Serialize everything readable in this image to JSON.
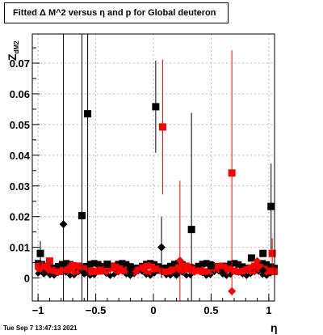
{
  "title": "Fitted Δ M^2 versus η and p for Global deuteron",
  "timestamp": "Tue Sep  7 13:47:13 2021",
  "chart_data": {
    "type": "scatter",
    "title": "Fitted Δ M^2 versus η and p for Global deuteron",
    "xlabel": "η",
    "ylabel": "Z_dM2",
    "xlim": [
      -1.05,
      1.05
    ],
    "ylim": [
      -0.0075,
      0.0795
    ],
    "xticks": [
      -1,
      -0.5,
      0,
      0.5,
      1
    ],
    "xtick_labels": [
      "−1",
      "−0.5",
      "0",
      "0.5",
      "1"
    ],
    "yticks": [
      0,
      0.01,
      0.02,
      0.03,
      0.04,
      0.05,
      0.06,
      0.07
    ],
    "ytick_labels": [
      "0",
      "0.01",
      "0.02",
      "0.03",
      "0.04",
      "0.05",
      "0.06",
      "0.07"
    ],
    "grid": true,
    "series": [
      {
        "marker": "square",
        "color": "#000000",
        "points": [
          {
            "x": -0.98,
            "y": 0.008,
            "err": 0.004
          },
          {
            "x": -0.62,
            "y": 0.0203,
            "err": 0.08
          },
          {
            "x": -0.57,
            "y": 0.0535,
            "err": 0.08
          },
          {
            "x": -0.4,
            "y": 0.0045,
            "err": 0.0
          },
          {
            "x": 0.02,
            "y": 0.0558,
            "err": 0.015
          },
          {
            "x": 0.33,
            "y": 0.0158,
            "err": 0.038
          },
          {
            "x": 0.95,
            "y": 0.008,
            "err": 0.0
          },
          {
            "x": 1.02,
            "y": 0.0233,
            "err": 0.014
          },
          {
            "x": -0.2,
            "y": 0.0035,
            "err": 0.0
          },
          {
            "x": 0.5,
            "y": 0.004,
            "err": 0.0
          },
          {
            "x": 0.85,
            "y": 0.0065,
            "err": 0.0
          }
        ]
      },
      {
        "marker": "diamond",
        "color": "#000000",
        "points": [
          {
            "x": -0.78,
            "y": 0.0175,
            "err": 0.065
          },
          {
            "x": 0.07,
            "y": 0.01,
            "err": 0.01
          },
          {
            "x": -0.95,
            "y": 0.0015,
            "err": 0.0
          },
          {
            "x": -0.6,
            "y": 0.0015,
            "err": 0.0
          },
          {
            "x": -0.2,
            "y": 0.0015,
            "err": 0.0
          },
          {
            "x": 0.2,
            "y": 0.001,
            "err": 0.0
          },
          {
            "x": 0.6,
            "y": 0.0015,
            "err": 0.0
          },
          {
            "x": 0.95,
            "y": 0.0025,
            "err": 0.0
          }
        ]
      },
      {
        "marker": "square",
        "color": "#ff0000",
        "points": [
          {
            "x": -0.9,
            "y": 0.0055,
            "err": 0.0
          },
          {
            "x": -0.7,
            "y": 0.004,
            "err": 0.0
          },
          {
            "x": 0.08,
            "y": 0.0492,
            "err": 0.022
          },
          {
            "x": 0.68,
            "y": 0.0342,
            "err": 0.04
          },
          {
            "x": 0.3,
            "y": 0.003,
            "err": 0.0
          },
          {
            "x": 1.03,
            "y": 0.008,
            "err": 0.005
          }
        ]
      },
      {
        "marker": "diamond",
        "color": "#ff0000",
        "points": [
          {
            "x": 0.23,
            "y": 0.0057,
            "err": 0.026
          },
          {
            "x": 0.68,
            "y": -0.0043,
            "err": 0.0
          },
          {
            "x": -0.8,
            "y": 0.0025,
            "err": 0.0
          },
          {
            "x": 0.9,
            "y": 0.0055,
            "err": 0.0
          }
        ]
      }
    ]
  }
}
